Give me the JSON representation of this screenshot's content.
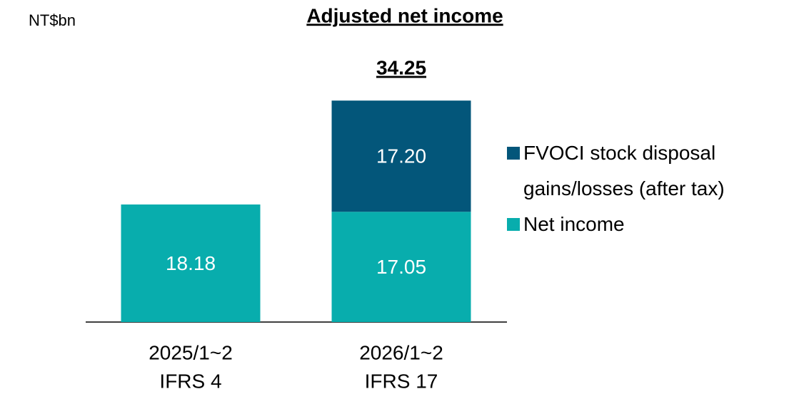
{
  "chart_data": {
    "type": "stacked-bar",
    "title": "Adjusted net income",
    "unit": "NT$bn",
    "categories": [
      [
        "2025/1~2",
        "IFRS 4"
      ],
      [
        "2026/1~2",
        "IFRS 17"
      ]
    ],
    "series": [
      {
        "name": "Net income",
        "color": "#08adad",
        "values": [
          18.18,
          17.05
        ]
      },
      {
        "name": "FVOCI stock disposal gains/losses (after tax)",
        "color": "#03567a",
        "values": [
          null,
          17.2
        ],
        "value_labels": [
          null,
          "17.20"
        ]
      }
    ],
    "totals": [
      null,
      34.25
    ],
    "ylim": [
      0,
      40
    ],
    "legend": "right"
  }
}
